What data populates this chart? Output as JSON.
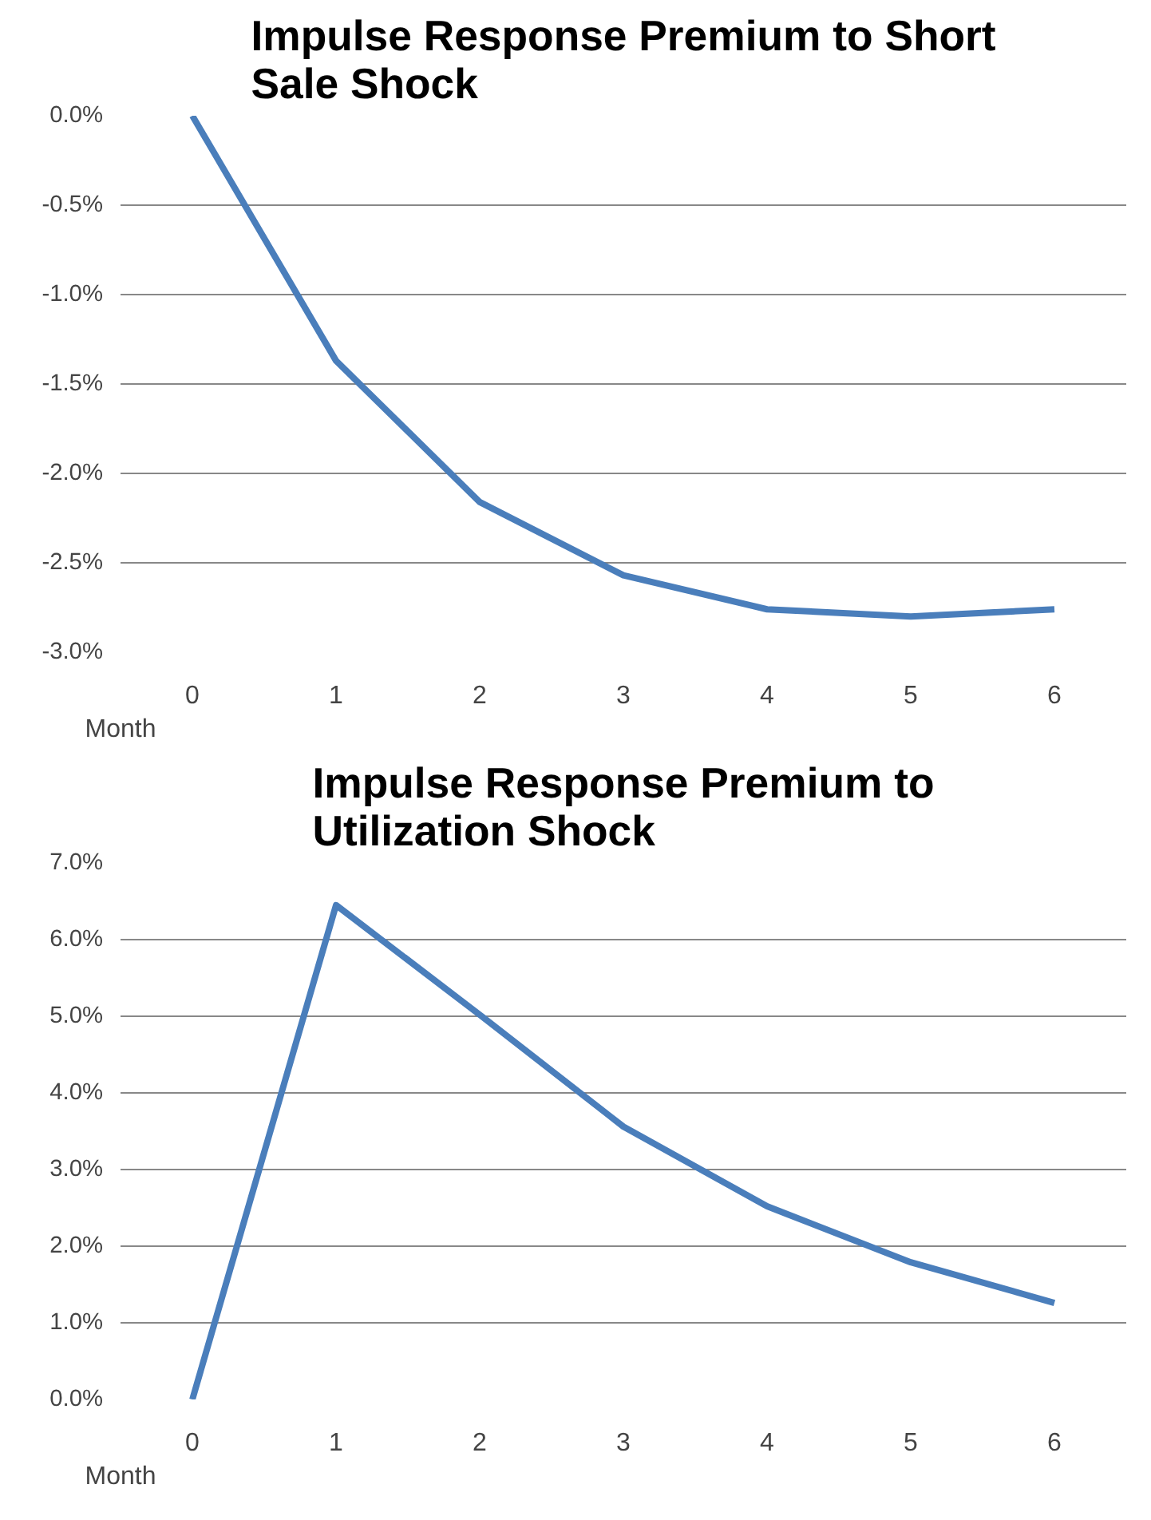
{
  "chart_data": [
    {
      "type": "line",
      "title": "Impulse Response Premium to Short Sale Shock",
      "xlabel": "Month",
      "categories": [
        "0",
        "1",
        "2",
        "3",
        "4",
        "5",
        "6"
      ],
      "series": [
        {
          "color": "#4a7ebb",
          "values": [
            0.0,
            -1.37,
            -2.16,
            -2.57,
            -2.76,
            -2.8,
            -2.76
          ]
        }
      ],
      "ylim": [
        -3.0,
        0.0
      ],
      "yticks": [
        {
          "value": 0.0,
          "label": "0.0%"
        },
        {
          "value": -0.5,
          "label": "-0.5%"
        },
        {
          "value": -1.0,
          "label": "-1.0%"
        },
        {
          "value": -1.5,
          "label": "-1.5%"
        },
        {
          "value": -2.0,
          "label": "-2.0%"
        },
        {
          "value": -2.5,
          "label": "-2.5%"
        },
        {
          "value": -3.0,
          "label": "-3.0%"
        }
      ],
      "grid": "y",
      "marker": "none",
      "line_style": "solid"
    },
    {
      "type": "line",
      "title": "Impulse Response Premium to Utilization Shock",
      "xlabel": "Month",
      "categories": [
        "0",
        "1",
        "2",
        "3",
        "4",
        "5",
        "6"
      ],
      "series": [
        {
          "color": "#4a7ebb",
          "values": [
            0.0,
            6.45,
            5.02,
            3.56,
            2.52,
            1.79,
            1.26
          ]
        }
      ],
      "ylim": [
        0.0,
        7.0
      ],
      "yticks": [
        {
          "value": 0.0,
          "label": "0.0%"
        },
        {
          "value": 1.0,
          "label": "1.0%"
        },
        {
          "value": 2.0,
          "label": "2.0%"
        },
        {
          "value": 3.0,
          "label": "3.0%"
        },
        {
          "value": 4.0,
          "label": "4.0%"
        },
        {
          "value": 5.0,
          "label": "5.0%"
        },
        {
          "value": 6.0,
          "label": "6.0%"
        },
        {
          "value": 7.0,
          "label": "7.0%"
        }
      ],
      "grid": "y",
      "marker": "none",
      "line_style": "solid"
    }
  ]
}
